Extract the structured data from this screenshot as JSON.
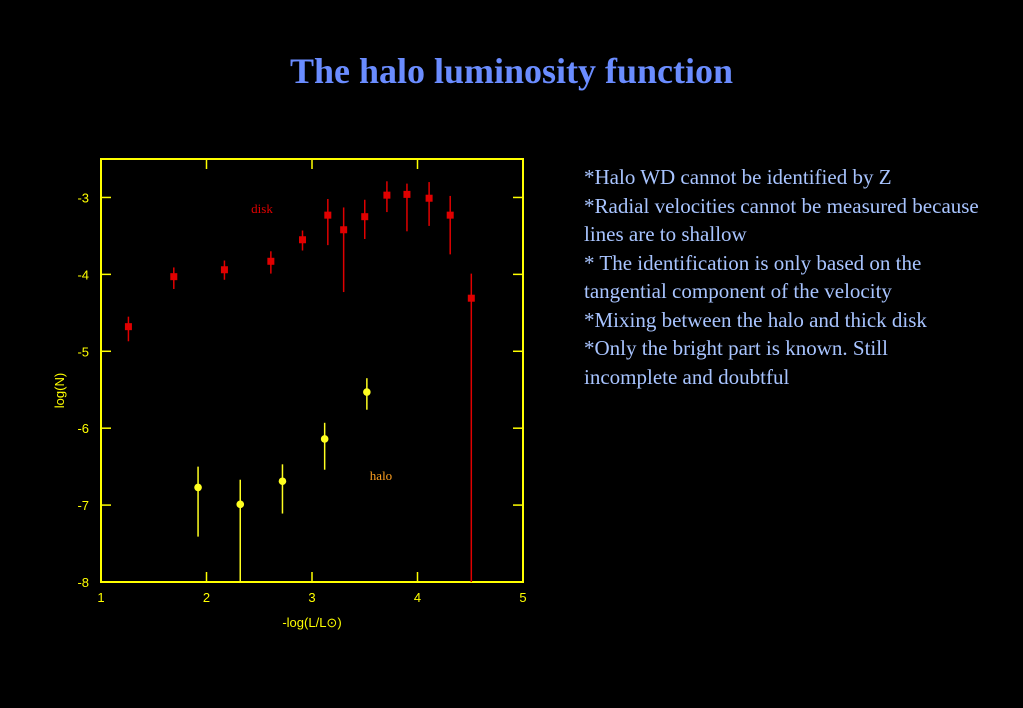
{
  "title": "The halo luminosity function",
  "chart_data": {
    "type": "scatter",
    "xlabel": "-log(L/L⊙)",
    "ylabel": "log(N)",
    "xlim": [
      1,
      5
    ],
    "ylim": [
      -8,
      -2.5
    ],
    "xticks": [
      1,
      2,
      3,
      4,
      5
    ],
    "yticks": [
      -3,
      -4,
      -5,
      -6,
      -7,
      -8
    ],
    "axis_color": "#ffff00",
    "series": [
      {
        "name": "disk",
        "color": "#e00000",
        "marker": "square",
        "x": [
          1.26,
          1.69,
          2.17,
          2.61,
          2.91,
          3.15,
          3.3,
          3.5,
          3.71,
          3.9,
          4.11,
          4.31,
          4.51
        ],
        "values": [
          -4.68,
          -4.03,
          -3.94,
          -3.83,
          -3.55,
          -3.23,
          -3.42,
          -3.25,
          -2.97,
          -2.96,
          -3.01,
          -3.23,
          -4.31
        ],
        "yerr_low": [
          0.19,
          0.16,
          0.13,
          0.16,
          0.14,
          0.39,
          0.81,
          0.29,
          0.22,
          0.48,
          0.36,
          0.51,
          3.69
        ],
        "yerr_high": [
          0.13,
          0.12,
          0.12,
          0.13,
          0.12,
          0.21,
          0.29,
          0.22,
          0.18,
          0.14,
          0.21,
          0.25,
          0.32
        ]
      },
      {
        "name": "halo",
        "color": "#ffff20",
        "label_color": "#ffa020",
        "marker": "circle",
        "x": [
          1.92,
          2.32,
          2.72,
          3.12,
          3.52
        ],
        "values": [
          -6.77,
          -6.99,
          -6.69,
          -6.14,
          -5.53
        ],
        "yerr_low": [
          0.64,
          1.01,
          0.42,
          0.4,
          0.23
        ],
        "yerr_high": [
          0.27,
          0.32,
          0.22,
          0.21,
          0.18
        ]
      }
    ]
  },
  "notes": [
    "*Halo WD cannot be identified by Z",
    "*Radial velocities cannot be measured because lines are to shallow",
    "* The identification is only based on the tangential component of the velocity",
    "*Mixing between the halo and thick disk",
    "*Only the bright part is known. Still incomplete and doubtful"
  ]
}
